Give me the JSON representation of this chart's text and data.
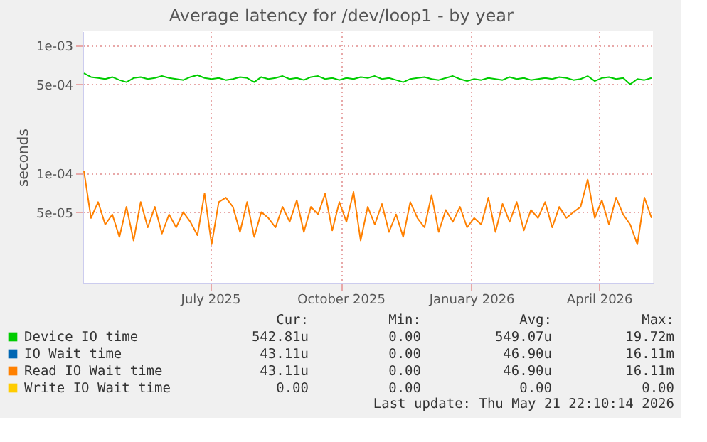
{
  "chart_data": {
    "type": "line",
    "title": "Average latency for /dev/loop1 - by year",
    "ylabel": "seconds",
    "log": true,
    "grid": true,
    "legend": "bottom",
    "xlim": [
      "2025-04-02",
      "2026-05-09"
    ],
    "xticks": [
      {
        "value": "2025-07-01",
        "label": "July 2025"
      },
      {
        "value": "2025-10-01",
        "label": "October 2025"
      },
      {
        "value": "2026-01-01",
        "label": "January 2026"
      },
      {
        "value": "2026-04-01",
        "label": "April 2026"
      }
    ],
    "ylim": [
      1.4e-05,
      0.0013
    ],
    "yticks": [
      {
        "value": 0.001,
        "label": "1e-03"
      },
      {
        "value": 0.0005,
        "label": "5e-04"
      },
      {
        "value": 0.0001,
        "label": "1e-04"
      },
      {
        "value": 5e-05,
        "label": "5e-05"
      }
    ],
    "x": [
      "2025-04-03",
      "2025-04-08",
      "2025-04-13",
      "2025-04-18",
      "2025-04-23",
      "2025-04-28",
      "2025-05-03",
      "2025-05-08",
      "2025-05-13",
      "2025-05-18",
      "2025-05-23",
      "2025-05-28",
      "2025-06-02",
      "2025-06-07",
      "2025-06-12",
      "2025-06-17",
      "2025-06-22",
      "2025-06-27",
      "2025-07-02",
      "2025-07-07",
      "2025-07-12",
      "2025-07-17",
      "2025-07-22",
      "2025-07-27",
      "2025-08-01",
      "2025-08-06",
      "2025-08-11",
      "2025-08-16",
      "2025-08-21",
      "2025-08-26",
      "2025-08-31",
      "2025-09-05",
      "2025-09-10",
      "2025-09-15",
      "2025-09-20",
      "2025-09-25",
      "2025-09-30",
      "2025-10-05",
      "2025-10-10",
      "2025-10-15",
      "2025-10-20",
      "2025-10-25",
      "2025-10-30",
      "2025-11-04",
      "2025-11-09",
      "2025-11-14",
      "2025-11-19",
      "2025-11-24",
      "2025-11-29",
      "2025-12-04",
      "2025-12-09",
      "2025-12-14",
      "2025-12-19",
      "2025-12-24",
      "2025-12-29",
      "2026-01-03",
      "2026-01-08",
      "2026-01-13",
      "2026-01-18",
      "2026-01-23",
      "2026-01-28",
      "2026-02-02",
      "2026-02-07",
      "2026-02-12",
      "2026-02-17",
      "2026-02-22",
      "2026-02-27",
      "2026-03-04",
      "2026-03-09",
      "2026-03-14",
      "2026-03-19",
      "2026-03-24",
      "2026-03-29",
      "2026-04-03",
      "2026-04-08",
      "2026-04-13",
      "2026-04-18",
      "2026-04-23",
      "2026-04-28",
      "2026-05-03",
      "2026-05-08"
    ],
    "series": [
      {
        "name": "Device IO time",
        "color": "#00cc00",
        "values": [
          0.00061,
          0.00057,
          0.00056,
          0.00055,
          0.00057,
          0.00054,
          0.00052,
          0.00056,
          0.00057,
          0.00055,
          0.00056,
          0.00058,
          0.00056,
          0.00055,
          0.00054,
          0.00057,
          0.00059,
          0.00056,
          0.00055,
          0.00056,
          0.00054,
          0.00055,
          0.00057,
          0.00056,
          0.00052,
          0.00057,
          0.00055,
          0.00056,
          0.00058,
          0.00055,
          0.00056,
          0.00054,
          0.00057,
          0.00058,
          0.00055,
          0.00056,
          0.00054,
          0.00056,
          0.00055,
          0.00057,
          0.00056,
          0.00058,
          0.00055,
          0.00056,
          0.00054,
          0.00052,
          0.00055,
          0.00056,
          0.00057,
          0.00055,
          0.00054,
          0.00056,
          0.00058,
          0.00055,
          0.00053,
          0.00055,
          0.00054,
          0.00056,
          0.00055,
          0.00054,
          0.00057,
          0.00055,
          0.00056,
          0.00054,
          0.00055,
          0.00056,
          0.00055,
          0.00057,
          0.00056,
          0.00054,
          0.00055,
          0.00058,
          0.00053,
          0.00056,
          0.00057,
          0.00055,
          0.00056,
          0.0005,
          0.00055,
          0.00054,
          0.00056
        ]
      },
      {
        "name": "IO Wait time",
        "color": "#0066b3",
        "values": [
          null,
          null,
          null,
          null,
          null,
          null,
          null,
          null,
          null,
          null,
          null,
          null,
          null,
          null,
          null,
          null,
          null,
          null,
          null,
          null,
          null,
          null,
          null,
          null,
          null,
          null,
          null,
          null,
          null,
          null,
          null,
          null,
          null,
          null,
          null,
          null,
          null,
          null,
          null,
          null,
          null,
          null,
          null,
          null,
          null,
          null,
          null,
          null,
          null,
          null,
          null,
          null,
          null,
          null,
          null,
          null,
          null,
          null,
          null,
          null,
          null,
          null,
          null,
          null,
          null,
          null,
          null,
          null,
          null,
          null,
          null,
          null,
          null,
          null,
          null,
          null,
          null,
          null,
          null,
          null,
          null
        ]
      },
      {
        "name": "Read IO Wait time",
        "color": "#ff8000",
        "values": [
          0.000105,
          4.5e-05,
          6e-05,
          4e-05,
          4.8e-05,
          3.2e-05,
          5.5e-05,
          3e-05,
          6e-05,
          3.8e-05,
          5.5e-05,
          3.4e-05,
          4.8e-05,
          3.8e-05,
          5e-05,
          4.2e-05,
          3.3e-05,
          7e-05,
          2.8e-05,
          6e-05,
          6.5e-05,
          5.5e-05,
          3.5e-05,
          6e-05,
          3.2e-05,
          5e-05,
          4.5e-05,
          3.8e-05,
          5.5e-05,
          4.2e-05,
          6.2e-05,
          3.5e-05,
          5.5e-05,
          4.8e-05,
          7e-05,
          3.6e-05,
          6e-05,
          4.2e-05,
          7.2e-05,
          3e-05,
          5.5e-05,
          4e-05,
          5.8e-05,
          3.5e-05,
          4.8e-05,
          3.2e-05,
          6e-05,
          4.5e-05,
          3.8e-05,
          6.8e-05,
          3.5e-05,
          5.2e-05,
          4.2e-05,
          5.5e-05,
          3.8e-05,
          4.5e-05,
          4e-05,
          6.5e-05,
          3.5e-05,
          5.8e-05,
          4.2e-05,
          6e-05,
          3.6e-05,
          5.2e-05,
          4.5e-05,
          6e-05,
          3.8e-05,
          5.5e-05,
          4.5e-05,
          5e-05,
          5.5e-05,
          9e-05,
          4.5e-05,
          6.2e-05,
          4e-05,
          6.5e-05,
          4.8e-05,
          4e-05,
          2.8e-05,
          6.5e-05,
          4.5e-05
        ]
      },
      {
        "name": "Write IO Wait time",
        "color": "#ffcc00",
        "values": [
          null,
          null,
          null,
          null,
          null,
          null,
          null,
          null,
          null,
          null,
          null,
          null,
          null,
          null,
          null,
          null,
          null,
          null,
          null,
          null,
          null,
          null,
          null,
          null,
          null,
          null,
          null,
          null,
          null,
          null,
          null,
          null,
          null,
          null,
          null,
          null,
          null,
          null,
          null,
          null,
          null,
          null,
          null,
          null,
          null,
          null,
          null,
          null,
          null,
          null,
          null,
          null,
          null,
          null,
          null,
          null,
          null,
          null,
          null,
          null,
          null,
          null,
          null,
          null,
          null,
          null,
          null,
          null,
          null,
          null,
          null,
          null,
          null,
          null,
          null,
          null,
          null,
          null,
          null,
          null,
          null
        ]
      }
    ],
    "annotations": [
      "Cur:",
      "Min:",
      "Avg:",
      "Max:",
      "542.81u",
      "0.00",
      "549.07u",
      "19.72m",
      "43.11u",
      "0.00",
      "46.90u",
      "16.11m",
      "43.11u",
      "0.00",
      "46.90u",
      "16.11m",
      "0.00",
      "0.00",
      "0.00",
      "0.00",
      "Last update: Thu May 21 22:10:14 2026"
    ]
  }
}
